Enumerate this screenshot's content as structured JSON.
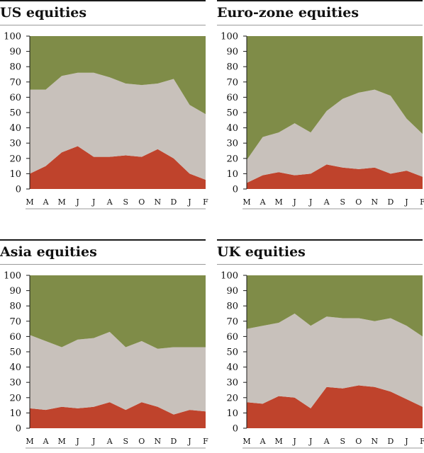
{
  "colors": {
    "green": "#7f8c48",
    "grey": "#c8c1bb",
    "red": "#bf432c",
    "axis": "#1a1a1a"
  },
  "chart_data": [
    {
      "type": "area",
      "title": "US equities",
      "categories": [
        "M",
        "A",
        "M",
        "J",
        "J",
        "A",
        "S",
        "O",
        "N",
        "D",
        "J",
        "F"
      ],
      "ylim": [
        0,
        100
      ],
      "yticks": [
        "0",
        "10",
        "20",
        "30",
        "40",
        "50",
        "60",
        "70",
        "80",
        "90",
        "100"
      ],
      "series": [
        {
          "values": [
            10,
            15,
            24,
            28,
            21,
            21,
            22,
            21,
            26,
            20,
            10,
            6
          ]
        },
        {
          "values": [
            55,
            50,
            50,
            48,
            55,
            52,
            47,
            47,
            43,
            52,
            45,
            43
          ]
        },
        {
          "values": [
            35,
            35,
            26,
            24,
            24,
            27,
            31,
            32,
            31,
            28,
            45,
            51
          ]
        }
      ]
    },
    {
      "type": "area",
      "title": "Euro-zone equities",
      "categories": [
        "M",
        "A",
        "M",
        "J",
        "J",
        "A",
        "S",
        "O",
        "N",
        "D",
        "J",
        "F"
      ],
      "ylim": [
        0,
        100
      ],
      "yticks": [
        "0",
        "10",
        "20",
        "30",
        "40",
        "50",
        "60",
        "70",
        "80",
        "90",
        "100"
      ],
      "series": [
        {
          "values": [
            4,
            9,
            11,
            9,
            10,
            16,
            14,
            13,
            14,
            10,
            12,
            8
          ]
        },
        {
          "values": [
            15,
            25,
            26,
            34,
            27,
            35,
            45,
            50,
            51,
            51,
            34,
            28
          ]
        },
        {
          "values": [
            81,
            66,
            63,
            57,
            63,
            49,
            41,
            37,
            35,
            39,
            54,
            64
          ]
        }
      ]
    },
    {
      "type": "area",
      "title": "Asia equities",
      "categories": [
        "M",
        "A",
        "M",
        "J",
        "J",
        "A",
        "S",
        "O",
        "N",
        "D",
        "J",
        "F"
      ],
      "ylim": [
        0,
        100
      ],
      "yticks": [
        "0",
        "10",
        "20",
        "30",
        "40",
        "50",
        "60",
        "70",
        "80",
        "90",
        "100"
      ],
      "series": [
        {
          "values": [
            13,
            12,
            14,
            13,
            14,
            17,
            12,
            17,
            14,
            9,
            12,
            11
          ]
        },
        {
          "values": [
            48,
            45,
            39,
            45,
            45,
            46,
            41,
            40,
            38,
            44,
            41,
            42
          ]
        },
        {
          "values": [
            39,
            43,
            47,
            42,
            41,
            37,
            47,
            43,
            48,
            47,
            47,
            47
          ]
        }
      ]
    },
    {
      "type": "area",
      "title": "UK equities",
      "categories": [
        "M",
        "A",
        "M",
        "J",
        "J",
        "A",
        "S",
        "O",
        "N",
        "D",
        "J",
        "F"
      ],
      "ylim": [
        0,
        100
      ],
      "yticks": [
        "0",
        "10",
        "20",
        "30",
        "40",
        "50",
        "60",
        "70",
        "80",
        "90",
        "100"
      ],
      "series": [
        {
          "values": [
            17,
            16,
            21,
            20,
            13,
            27,
            26,
            28,
            27,
            24,
            19,
            14
          ]
        },
        {
          "values": [
            48,
            51,
            48,
            55,
            54,
            46,
            46,
            44,
            43,
            48,
            48,
            46
          ]
        },
        {
          "values": [
            35,
            33,
            31,
            25,
            33,
            27,
            28,
            28,
            30,
            28,
            33,
            40
          ]
        }
      ]
    }
  ]
}
